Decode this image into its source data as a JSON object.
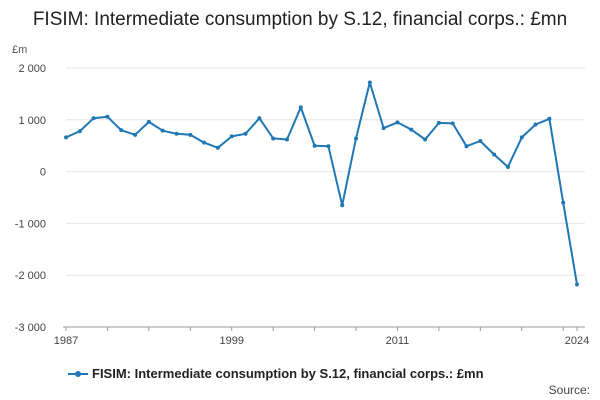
{
  "title": "FISIM: Intermediate consumption by S.12, financial corps.: £mn",
  "source_label": "Source:",
  "chart_data": {
    "type": "line",
    "title": "FISIM: Intermediate consumption by S.12, financial corps.: £mn",
    "ylabel": "£m",
    "xlabel": "",
    "ylim": [
      -3000,
      2000
    ],
    "xlim": [
      1987,
      2024
    ],
    "yticks": [
      2000,
      1000,
      0,
      -1000,
      -2000,
      -3000
    ],
    "ytick_labels": [
      "2 000",
      "1 000",
      "0",
      "-1 000",
      "-2 000",
      "-3 000"
    ],
    "xticks": [
      1987,
      1999,
      2011,
      2024
    ],
    "xtick_labels": [
      "1987",
      "1999",
      "2011",
      "2024"
    ],
    "grid": true,
    "legend_position": "bottom",
    "color": "#1f77b4",
    "series": [
      {
        "name": "FISIM: Intermediate consumption by S.12, financial corps.: £mn",
        "x": [
          1987,
          1988,
          1989,
          1990,
          1991,
          1992,
          1993,
          1994,
          1995,
          1996,
          1997,
          1998,
          1999,
          2000,
          2001,
          2002,
          2003,
          2004,
          2005,
          2006,
          2007,
          2008,
          2009,
          2010,
          2011,
          2012,
          2013,
          2014,
          2015,
          2016,
          2017,
          2018,
          2019,
          2020,
          2021,
          2022,
          2023,
          2024
        ],
        "values": [
          660,
          780,
          1030,
          1060,
          800,
          710,
          960,
          790,
          730,
          710,
          560,
          460,
          680,
          730,
          1030,
          640,
          620,
          1240,
          500,
          490,
          -650,
          640,
          1720,
          840,
          950,
          810,
          620,
          940,
          930,
          490,
          590,
          330,
          90,
          660,
          910,
          1020,
          -600,
          -2180
        ]
      }
    ]
  }
}
